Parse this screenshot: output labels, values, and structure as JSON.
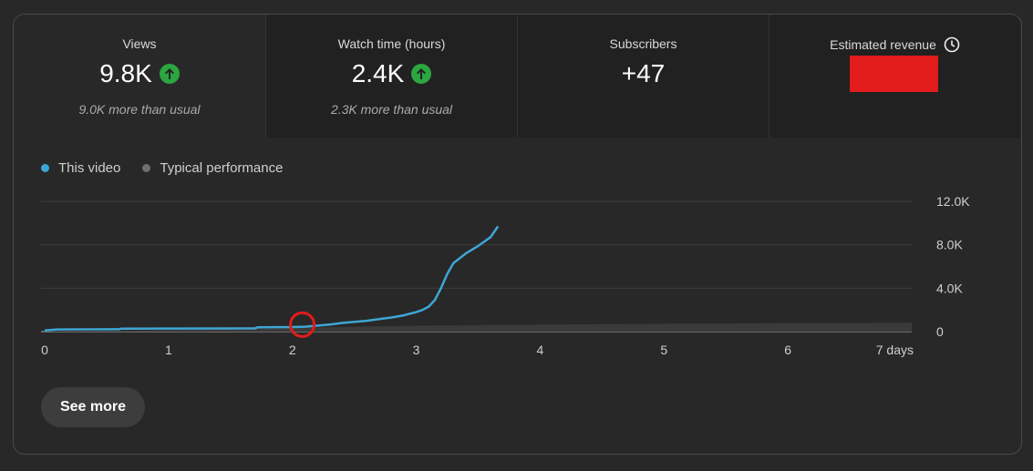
{
  "metrics": [
    {
      "label": "Views",
      "value": "9.8K",
      "note": "9.0K more than usual",
      "trend_icon": "arrow-up-circle-icon",
      "selected": true
    },
    {
      "label": "Watch time (hours)",
      "value": "2.4K",
      "note": "2.3K more than usual",
      "trend_icon": "arrow-up-circle-icon",
      "selected": false
    },
    {
      "label": "Subscribers",
      "value": "+47",
      "note": "",
      "selected": false
    },
    {
      "label": "Estimated revenue",
      "value": "",
      "note": "",
      "info_icon": "clock-icon",
      "redacted": true,
      "selected": false
    }
  ],
  "colors": {
    "this_video": "#3ea6d5",
    "typical": "#707070",
    "positive": "#2ba640",
    "redaction": "#e21b1b"
  },
  "legend": [
    {
      "label": "This video",
      "color": "#3ea6d5"
    },
    {
      "label": "Typical performance",
      "color": "#707070"
    }
  ],
  "chart_data": {
    "type": "line",
    "x_tick_labels": [
      "0",
      "1",
      "2",
      "3",
      "4",
      "5",
      "6",
      "7 days"
    ],
    "y_tick_labels": [
      "12.0K",
      "8.0K",
      "4.0K",
      "0"
    ],
    "xlim": [
      0,
      7
    ],
    "ylim": [
      0,
      12000
    ],
    "grid": true,
    "annotation": {
      "type": "red-circle",
      "x": 2.08,
      "y": 300
    },
    "series": [
      {
        "name": "This video",
        "color": "#3ea6d5",
        "points": [
          [
            0,
            100
          ],
          [
            0.1,
            200
          ],
          [
            0.6,
            220
          ],
          [
            0.62,
            280
          ],
          [
            1.7,
            300
          ],
          [
            1.72,
            400
          ],
          [
            2.0,
            420
          ],
          [
            2.1,
            450
          ],
          [
            2.3,
            650
          ],
          [
            2.4,
            800
          ],
          [
            2.6,
            1000
          ],
          [
            2.7,
            1150
          ],
          [
            2.8,
            1300
          ],
          [
            2.9,
            1500
          ],
          [
            3.0,
            1800
          ],
          [
            3.05,
            2000
          ],
          [
            3.1,
            2300
          ],
          [
            3.15,
            2900
          ],
          [
            3.2,
            4000
          ],
          [
            3.25,
            5300
          ],
          [
            3.3,
            6300
          ],
          [
            3.4,
            7200
          ],
          [
            3.5,
            7900
          ],
          [
            3.6,
            8700
          ],
          [
            3.66,
            9700
          ]
        ]
      },
      {
        "name": "Typical performance",
        "color": "#707070",
        "type": "band",
        "points": [
          [
            0,
            50
          ],
          [
            1,
            150
          ],
          [
            2,
            350
          ],
          [
            3,
            550
          ],
          [
            4,
            650
          ],
          [
            5,
            720
          ],
          [
            6,
            780
          ],
          [
            7,
            820
          ]
        ]
      }
    ]
  },
  "see_more_label": "See more"
}
